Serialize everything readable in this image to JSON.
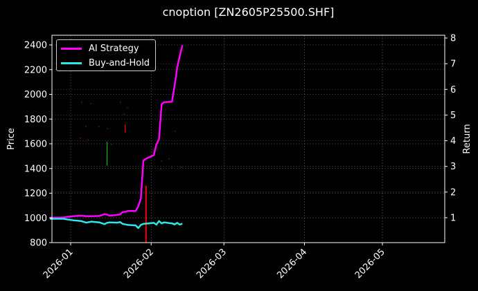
{
  "chart_data": {
    "type": "line",
    "title": "cnoption [ZN2605P25500.SHF]",
    "xlabel": "",
    "ylabel": "Price",
    "ylabel_right": "Return",
    "x_ticks": [
      "2026-01",
      "2026-02",
      "2026-03",
      "2026-04",
      "2026-05"
    ],
    "y_ticks_left": [
      800,
      1000,
      1200,
      1400,
      1600,
      1800,
      2000,
      2200,
      2400
    ],
    "y_ticks_right": [
      1,
      2,
      3,
      4,
      5,
      6,
      7,
      8
    ],
    "ylim_left": [
      790,
      2470
    ],
    "ylim_right": [
      0.2,
      8.1
    ],
    "grid": true,
    "legend_position": "upper left",
    "series": [
      {
        "name": "AI Strategy",
        "axis": "right",
        "color": "#ff00ff",
        "x": [
          "2025-12-24",
          "2025-12-29",
          "2026-01-02",
          "2026-01-05",
          "2026-01-07",
          "2026-01-09",
          "2026-01-12",
          "2026-01-14",
          "2026-01-15",
          "2026-01-16",
          "2026-01-19",
          "2026-01-20",
          "2026-01-21",
          "2026-01-22",
          "2026-01-23",
          "2026-01-26",
          "2026-01-27",
          "2026-01-28",
          "2026-01-29",
          "2026-01-30",
          "2026-02-02",
          "2026-02-03",
          "2026-02-04",
          "2026-02-05",
          "2026-02-06",
          "2026-02-09",
          "2026-02-10",
          "2026-02-11",
          "2026-02-12",
          "2026-02-13"
        ],
        "values": [
          1.0,
          1.01,
          1.06,
          1.08,
          1.06,
          1.06,
          1.07,
          1.14,
          1.12,
          1.08,
          1.11,
          1.13,
          1.22,
          1.23,
          1.26,
          1.26,
          1.43,
          1.75,
          3.23,
          3.3,
          3.44,
          3.86,
          4.05,
          5.42,
          5.5,
          5.52,
          6.14,
          6.85,
          7.3,
          7.72
        ]
      },
      {
        "name": "Buy-and-Hold",
        "axis": "right",
        "color": "#2de8e8",
        "x": [
          "2025-12-24",
          "2025-12-29",
          "2026-01-02",
          "2026-01-05",
          "2026-01-07",
          "2026-01-09",
          "2026-01-12",
          "2026-01-14",
          "2026-01-15",
          "2026-01-16",
          "2026-01-19",
          "2026-01-20",
          "2026-01-21",
          "2026-01-22",
          "2026-01-23",
          "2026-01-26",
          "2026-01-27",
          "2026-01-28",
          "2026-01-29",
          "2026-01-30",
          "2026-02-02",
          "2026-02-03",
          "2026-02-04",
          "2026-02-05",
          "2026-02-06",
          "2026-02-09",
          "2026-02-10",
          "2026-02-11",
          "2026-02-12",
          "2026-02-13"
        ],
        "values": [
          0.96,
          0.96,
          0.9,
          0.87,
          0.81,
          0.85,
          0.82,
          0.75,
          0.8,
          0.82,
          0.81,
          0.83,
          0.76,
          0.74,
          0.72,
          0.7,
          0.6,
          0.72,
          0.76,
          0.77,
          0.8,
          0.73,
          0.87,
          0.78,
          0.82,
          0.78,
          0.74,
          0.8,
          0.73,
          0.77
        ]
      }
    ],
    "candles": [
      {
        "date": "2026-01-15",
        "color": "#00c000",
        "low": 1425,
        "high": 1615
      },
      {
        "date": "2026-01-22",
        "color": "#ff0000",
        "low": 1690,
        "high": 1755
      },
      {
        "date": "2026-01-30",
        "color": "#ff0000",
        "low": 800,
        "high": 1260
      }
    ]
  }
}
